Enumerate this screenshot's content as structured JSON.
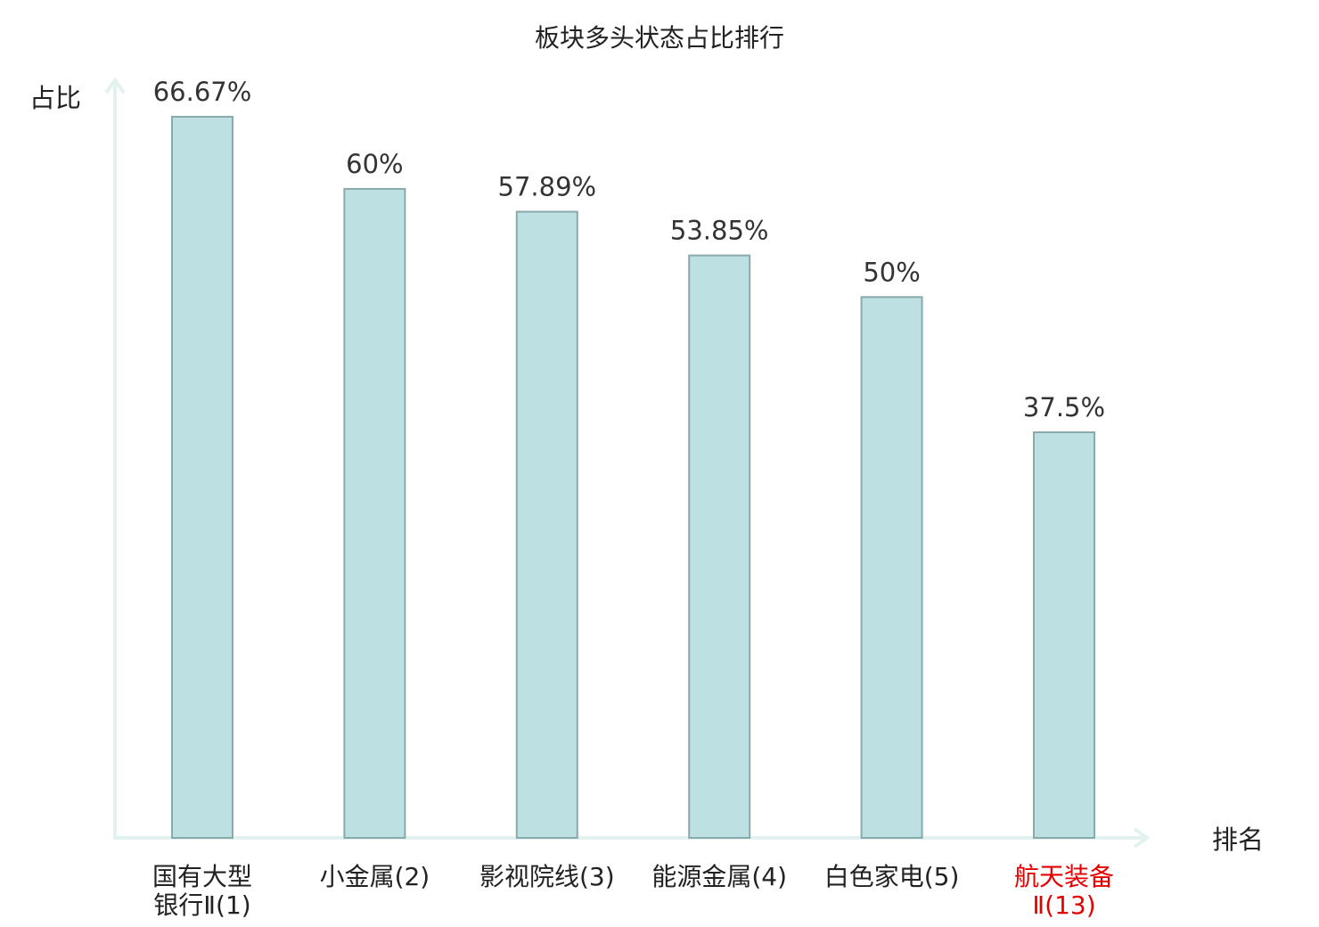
{
  "chart_data": {
    "type": "bar",
    "title": "板块多头状态占比排行",
    "ylabel": "占比",
    "xlabel": "排名",
    "categories": [
      [
        "国有大型",
        "银行Ⅱ(1)"
      ],
      [
        "小金属(2)"
      ],
      [
        "影视院线(3)"
      ],
      [
        "能源金属(4)"
      ],
      [
        "白色家电(5)"
      ],
      [
        "航天装备",
        "Ⅱ(13)"
      ]
    ],
    "values": [
      66.67,
      60,
      57.89,
      53.85,
      50,
      37.5
    ],
    "value_labels": [
      "66.67%",
      "60%",
      "57.89%",
      "53.85%",
      "50%",
      "37.5%"
    ],
    "highlight_index": 5,
    "ylim": [
      0,
      66.67
    ],
    "grid": false,
    "colors": {
      "bar_fill": "#bde0e3",
      "bar_stroke": "#8aa9ab",
      "axis": "#e2f2ef",
      "highlight_text": "#e60000"
    }
  }
}
